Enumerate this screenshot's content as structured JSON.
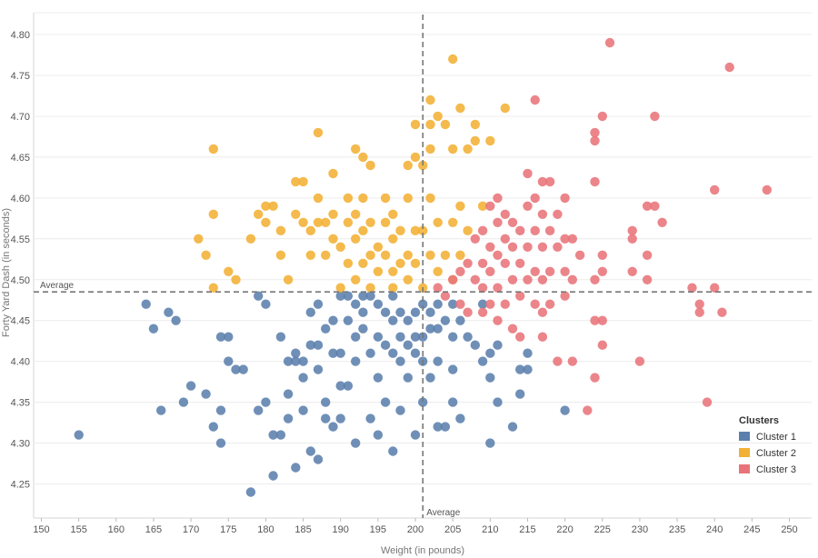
{
  "chart_data": {
    "type": "scatter",
    "title": "",
    "xlabel": "Weight (in pounds)",
    "ylabel": "Forty Yard Dash (in seconds)",
    "xlim": [
      147,
      253
    ],
    "ylim": [
      4.22,
      4.82
    ],
    "x_ticks": [
      150,
      155,
      160,
      165,
      170,
      175,
      180,
      185,
      190,
      195,
      200,
      205,
      210,
      215,
      220,
      225,
      230,
      235,
      240,
      245,
      250
    ],
    "y_ticks": [
      4.25,
      4.3,
      4.35,
      4.4,
      4.45,
      4.5,
      4.55,
      4.6,
      4.65,
      4.7,
      4.75,
      4.8
    ],
    "grid": true,
    "reference_lines": {
      "x": {
        "value": 201,
        "label": "Average"
      },
      "y": {
        "value": 4.485,
        "label": "Average"
      }
    },
    "legend": {
      "title": "Clusters",
      "position": "right"
    },
    "series": [
      {
        "name": "Cluster 1",
        "color": "#5b7fad",
        "points": [
          [
            155,
            4.31
          ],
          [
            164,
            4.47
          ],
          [
            165,
            4.44
          ],
          [
            166,
            4.34
          ],
          [
            167,
            4.46
          ],
          [
            168,
            4.45
          ],
          [
            169,
            4.35
          ],
          [
            170,
            4.37
          ],
          [
            172,
            4.36
          ],
          [
            173,
            4.32
          ],
          [
            174,
            4.43
          ],
          [
            174,
            4.34
          ],
          [
            174,
            4.3
          ],
          [
            175,
            4.43
          ],
          [
            175,
            4.4
          ],
          [
            176,
            4.39
          ],
          [
            177,
            4.39
          ],
          [
            178,
            4.24
          ],
          [
            179,
            4.34
          ],
          [
            179,
            4.48
          ],
          [
            180,
            4.47
          ],
          [
            180,
            4.35
          ],
          [
            181,
            4.31
          ],
          [
            181,
            4.26
          ],
          [
            182,
            4.43
          ],
          [
            182,
            4.31
          ],
          [
            183,
            4.4
          ],
          [
            183,
            4.36
          ],
          [
            183,
            4.33
          ],
          [
            184,
            4.41
          ],
          [
            184,
            4.4
          ],
          [
            184,
            4.27
          ],
          [
            185,
            4.4
          ],
          [
            185,
            4.38
          ],
          [
            185,
            4.34
          ],
          [
            186,
            4.42
          ],
          [
            186,
            4.46
          ],
          [
            186,
            4.29
          ],
          [
            187,
            4.47
          ],
          [
            187,
            4.42
          ],
          [
            187,
            4.39
          ],
          [
            187,
            4.28
          ],
          [
            188,
            4.44
          ],
          [
            188,
            4.35
          ],
          [
            188,
            4.33
          ],
          [
            189,
            4.45
          ],
          [
            189,
            4.41
          ],
          [
            189,
            4.32
          ],
          [
            190,
            4.48
          ],
          [
            190,
            4.41
          ],
          [
            190,
            4.37
          ],
          [
            190,
            4.33
          ],
          [
            191,
            4.48
          ],
          [
            191,
            4.45
          ],
          [
            191,
            4.37
          ],
          [
            192,
            4.47
          ],
          [
            192,
            4.43
          ],
          [
            192,
            4.4
          ],
          [
            192,
            4.3
          ],
          [
            193,
            4.48
          ],
          [
            193,
            4.46
          ],
          [
            193,
            4.44
          ],
          [
            194,
            4.48
          ],
          [
            194,
            4.41
          ],
          [
            194,
            4.33
          ],
          [
            195,
            4.47
          ],
          [
            195,
            4.43
          ],
          [
            195,
            4.38
          ],
          [
            195,
            4.31
          ],
          [
            196,
            4.46
          ],
          [
            196,
            4.42
          ],
          [
            196,
            4.35
          ],
          [
            197,
            4.48
          ],
          [
            197,
            4.45
          ],
          [
            197,
            4.41
          ],
          [
            197,
            4.29
          ],
          [
            198,
            4.46
          ],
          [
            198,
            4.43
          ],
          [
            198,
            4.4
          ],
          [
            198,
            4.34
          ],
          [
            199,
            4.45
          ],
          [
            199,
            4.42
          ],
          [
            199,
            4.38
          ],
          [
            200,
            4.46
          ],
          [
            200,
            4.43
          ],
          [
            200,
            4.41
          ],
          [
            200,
            4.31
          ],
          [
            201,
            4.47
          ],
          [
            201,
            4.43
          ],
          [
            201,
            4.4
          ],
          [
            201,
            4.35
          ],
          [
            202,
            4.46
          ],
          [
            202,
            4.44
          ],
          [
            202,
            4.38
          ],
          [
            203,
            4.47
          ],
          [
            203,
            4.44
          ],
          [
            203,
            4.4
          ],
          [
            203,
            4.32
          ],
          [
            204,
            4.45
          ],
          [
            204,
            4.32
          ],
          [
            205,
            4.47
          ],
          [
            205,
            4.43
          ],
          [
            205,
            4.39
          ],
          [
            205,
            4.35
          ],
          [
            206,
            4.45
          ],
          [
            206,
            4.33
          ],
          [
            207,
            4.43
          ],
          [
            208,
            4.42
          ],
          [
            209,
            4.47
          ],
          [
            209,
            4.4
          ],
          [
            210,
            4.41
          ],
          [
            210,
            4.38
          ],
          [
            210,
            4.3
          ],
          [
            211,
            4.42
          ],
          [
            211,
            4.35
          ],
          [
            213,
            4.32
          ],
          [
            214,
            4.39
          ],
          [
            214,
            4.36
          ],
          [
            215,
            4.39
          ],
          [
            215,
            4.41
          ],
          [
            220,
            4.34
          ]
        ]
      },
      {
        "name": "Cluster 2",
        "color": "#f2b134",
        "points": [
          [
            171,
            4.55
          ],
          [
            172,
            4.53
          ],
          [
            173,
            4.66
          ],
          [
            173,
            4.58
          ],
          [
            173,
            4.49
          ],
          [
            175,
            4.51
          ],
          [
            176,
            4.5
          ],
          [
            178,
            4.55
          ],
          [
            179,
            4.58
          ],
          [
            180,
            4.57
          ],
          [
            180,
            4.59
          ],
          [
            181,
            4.59
          ],
          [
            182,
            4.56
          ],
          [
            182,
            4.53
          ],
          [
            183,
            4.5
          ],
          [
            184,
            4.62
          ],
          [
            184,
            4.58
          ],
          [
            185,
            4.57
          ],
          [
            185,
            4.62
          ],
          [
            186,
            4.56
          ],
          [
            186,
            4.53
          ],
          [
            187,
            4.68
          ],
          [
            187,
            4.6
          ],
          [
            187,
            4.57
          ],
          [
            188,
            4.57
          ],
          [
            188,
            4.53
          ],
          [
            189,
            4.63
          ],
          [
            189,
            4.58
          ],
          [
            189,
            4.55
          ],
          [
            190,
            4.54
          ],
          [
            190,
            4.49
          ],
          [
            191,
            4.6
          ],
          [
            191,
            4.57
          ],
          [
            191,
            4.52
          ],
          [
            192,
            4.66
          ],
          [
            192,
            4.58
          ],
          [
            192,
            4.55
          ],
          [
            192,
            4.5
          ],
          [
            193,
            4.65
          ],
          [
            193,
            4.6
          ],
          [
            193,
            4.56
          ],
          [
            193,
            4.52
          ],
          [
            194,
            4.64
          ],
          [
            194,
            4.57
          ],
          [
            194,
            4.53
          ],
          [
            194,
            4.49
          ],
          [
            195,
            4.54
          ],
          [
            195,
            4.51
          ],
          [
            196,
            4.6
          ],
          [
            196,
            4.57
          ],
          [
            196,
            4.53
          ],
          [
            197,
            4.58
          ],
          [
            197,
            4.55
          ],
          [
            197,
            4.51
          ],
          [
            197,
            4.49
          ],
          [
            198,
            4.56
          ],
          [
            198,
            4.52
          ],
          [
            199,
            4.64
          ],
          [
            199,
            4.6
          ],
          [
            199,
            4.53
          ],
          [
            199,
            4.5
          ],
          [
            200,
            4.65
          ],
          [
            200,
            4.69
          ],
          [
            200,
            4.56
          ],
          [
            200,
            4.52
          ],
          [
            201,
            4.64
          ],
          [
            201,
            4.56
          ],
          [
            201,
            4.49
          ],
          [
            202,
            4.72
          ],
          [
            202,
            4.69
          ],
          [
            202,
            4.66
          ],
          [
            202,
            4.6
          ],
          [
            202,
            4.53
          ],
          [
            203,
            4.7
          ],
          [
            203,
            4.57
          ],
          [
            203,
            4.51
          ],
          [
            204,
            4.69
          ],
          [
            204,
            4.53
          ],
          [
            205,
            4.77
          ],
          [
            205,
            4.66
          ],
          [
            205,
            4.57
          ],
          [
            205,
            4.5
          ],
          [
            206,
            4.71
          ],
          [
            206,
            4.59
          ],
          [
            206,
            4.53
          ],
          [
            207,
            4.66
          ],
          [
            207,
            4.56
          ],
          [
            208,
            4.69
          ],
          [
            208,
            4.67
          ],
          [
            209,
            4.59
          ],
          [
            210,
            4.67
          ],
          [
            212,
            4.71
          ]
        ]
      },
      {
        "name": "Cluster 3",
        "color": "#e8747a",
        "points": [
          [
            203,
            4.49
          ],
          [
            204,
            4.48
          ],
          [
            205,
            4.5
          ],
          [
            206,
            4.51
          ],
          [
            206,
            4.47
          ],
          [
            207,
            4.52
          ],
          [
            207,
            4.46
          ],
          [
            208,
            4.55
          ],
          [
            208,
            4.5
          ],
          [
            209,
            4.56
          ],
          [
            209,
            4.52
          ],
          [
            209,
            4.49
          ],
          [
            209,
            4.46
          ],
          [
            210,
            4.59
          ],
          [
            210,
            4.54
          ],
          [
            210,
            4.51
          ],
          [
            210,
            4.47
          ],
          [
            211,
            4.6
          ],
          [
            211,
            4.57
          ],
          [
            211,
            4.53
          ],
          [
            211,
            4.49
          ],
          [
            211,
            4.45
          ],
          [
            212,
            4.58
          ],
          [
            212,
            4.55
          ],
          [
            212,
            4.52
          ],
          [
            212,
            4.47
          ],
          [
            213,
            4.57
          ],
          [
            213,
            4.54
          ],
          [
            213,
            4.5
          ],
          [
            213,
            4.44
          ],
          [
            214,
            4.56
          ],
          [
            214,
            4.52
          ],
          [
            214,
            4.48
          ],
          [
            214,
            4.43
          ],
          [
            215,
            4.63
          ],
          [
            215,
            4.59
          ],
          [
            215,
            4.54
          ],
          [
            215,
            4.5
          ],
          [
            216,
            4.72
          ],
          [
            216,
            4.6
          ],
          [
            216,
            4.56
          ],
          [
            216,
            4.51
          ],
          [
            216,
            4.47
          ],
          [
            217,
            4.62
          ],
          [
            217,
            4.58
          ],
          [
            217,
            4.54
          ],
          [
            217,
            4.5
          ],
          [
            217,
            4.46
          ],
          [
            217,
            4.43
          ],
          [
            218,
            4.62
          ],
          [
            218,
            4.56
          ],
          [
            218,
            4.51
          ],
          [
            218,
            4.47
          ],
          [
            219,
            4.58
          ],
          [
            219,
            4.54
          ],
          [
            219,
            4.4
          ],
          [
            220,
            4.6
          ],
          [
            220,
            4.55
          ],
          [
            220,
            4.51
          ],
          [
            220,
            4.48
          ],
          [
            221,
            4.55
          ],
          [
            221,
            4.5
          ],
          [
            221,
            4.4
          ],
          [
            222,
            4.53
          ],
          [
            223,
            4.34
          ],
          [
            224,
            4.68
          ],
          [
            224,
            4.67
          ],
          [
            224,
            4.62
          ],
          [
            224,
            4.5
          ],
          [
            224,
            4.45
          ],
          [
            224,
            4.38
          ],
          [
            225,
            4.7
          ],
          [
            225,
            4.53
          ],
          [
            225,
            4.51
          ],
          [
            225,
            4.45
          ],
          [
            225,
            4.42
          ],
          [
            226,
            4.79
          ],
          [
            229,
            4.56
          ],
          [
            229,
            4.55
          ],
          [
            229,
            4.51
          ],
          [
            230,
            4.4
          ],
          [
            231,
            4.59
          ],
          [
            231,
            4.53
          ],
          [
            231,
            4.5
          ],
          [
            232,
            4.7
          ],
          [
            232,
            4.59
          ],
          [
            233,
            4.57
          ],
          [
            237,
            4.49
          ],
          [
            238,
            4.46
          ],
          [
            238,
            4.47
          ],
          [
            239,
            4.35
          ],
          [
            240,
            4.61
          ],
          [
            240,
            4.49
          ],
          [
            241,
            4.46
          ],
          [
            242,
            4.76
          ],
          [
            247,
            4.61
          ]
        ]
      }
    ]
  }
}
